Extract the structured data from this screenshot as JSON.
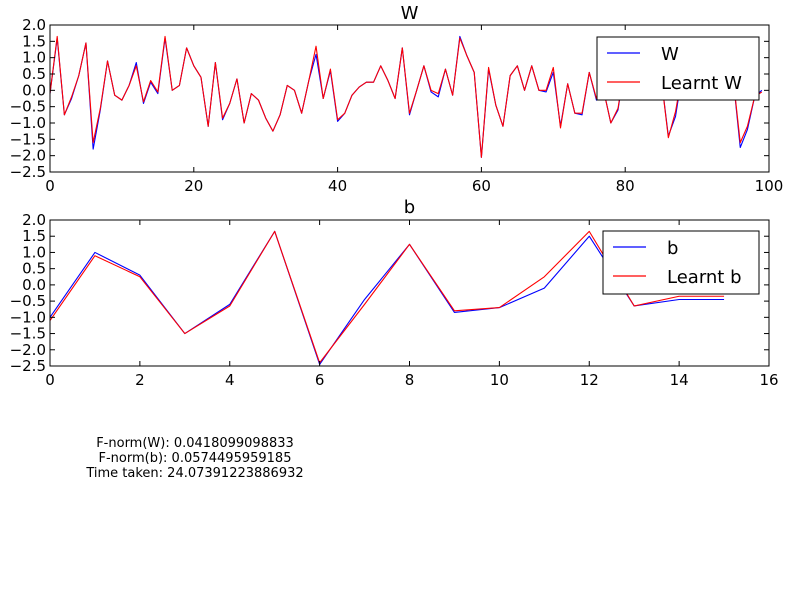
{
  "chart_data": [
    {
      "type": "line",
      "title": "W",
      "xlabel": "",
      "ylabel": "",
      "xlim": [
        0,
        100
      ],
      "ylim": [
        -2.5,
        2.0
      ],
      "xticks": [
        "0",
        "20",
        "40",
        "60",
        "80",
        "100"
      ],
      "yticks": [
        "2.0",
        "1.5",
        "1.0",
        "0.5",
        "0.0",
        "−0.5",
        "−1.0",
        "−1.5",
        "−2.0",
        "−2.5"
      ],
      "legend": "top-right",
      "series": [
        {
          "name": "W",
          "color": "#0000ff",
          "values": [
            -0.1,
            1.6,
            -0.75,
            -0.25,
            0.45,
            1.45,
            -1.8,
            -0.6,
            0.9,
            -0.15,
            -0.3,
            0.15,
            0.85,
            -0.4,
            0.25,
            -0.1,
            1.6,
            0.0,
            0.15,
            1.3,
            0.75,
            0.4,
            -1.1,
            0.85,
            -0.9,
            -0.4,
            0.35,
            -1.0,
            -0.1,
            -0.3,
            -0.85,
            -1.25,
            -0.75,
            0.15,
            0.0,
            -0.7,
            0.3,
            1.1,
            -0.25,
            0.6,
            -0.95,
            -0.7,
            -0.15,
            0.1,
            0.25,
            0.25,
            0.75,
            0.3,
            -0.25,
            1.3,
            -0.75,
            0.0,
            0.75,
            -0.05,
            -0.2,
            0.65,
            -0.15,
            1.65,
            1.05,
            0.55,
            -2.05,
            0.65,
            -0.45,
            -1.1,
            0.45,
            0.75,
            0.0,
            0.75,
            0.0,
            -0.05,
            0.55,
            -1.1,
            0.2,
            -0.7,
            -0.75,
            0.55,
            -0.3,
            0.0,
            -1.0,
            -0.6,
            0.85,
            0.3,
            0.4,
            0.4,
            0.3,
            0.4,
            -1.4,
            -0.8,
            0.6,
            0.4,
            0.3,
            0.4,
            0.3,
            0.4,
            0.3,
            0.4,
            -1.75,
            -1.2,
            -0.2,
            0.0
          ]
        },
        {
          "name": "Learnt W",
          "color": "#ff0000",
          "values": [
            -0.1,
            1.65,
            -0.75,
            -0.2,
            0.45,
            1.45,
            -1.6,
            -0.55,
            0.9,
            -0.15,
            -0.3,
            0.15,
            0.75,
            -0.35,
            0.3,
            -0.05,
            1.65,
            0.0,
            0.15,
            1.3,
            0.75,
            0.4,
            -1.1,
            0.85,
            -0.85,
            -0.4,
            0.35,
            -1.0,
            -0.1,
            -0.3,
            -0.85,
            -1.25,
            -0.75,
            0.15,
            0.0,
            -0.7,
            0.3,
            1.35,
            -0.25,
            0.65,
            -0.9,
            -0.7,
            -0.15,
            0.1,
            0.25,
            0.25,
            0.75,
            0.3,
            -0.25,
            1.3,
            -0.7,
            0.0,
            0.75,
            0.0,
            -0.1,
            0.65,
            -0.15,
            1.6,
            1.05,
            0.55,
            -2.05,
            0.7,
            -0.45,
            -1.1,
            0.45,
            0.75,
            0.0,
            0.75,
            0.0,
            0.0,
            0.7,
            -1.15,
            0.2,
            -0.7,
            -0.7,
            0.55,
            -0.25,
            0.0,
            -1.0,
            -0.55,
            0.85,
            0.3,
            0.4,
            0.4,
            0.3,
            0.4,
            -1.45,
            -0.65,
            0.6,
            0.4,
            0.3,
            0.4,
            0.3,
            0.4,
            0.3,
            0.4,
            -1.6,
            -1.1,
            -0.2,
            -0.05
          ]
        }
      ]
    },
    {
      "type": "line",
      "title": "b",
      "xlabel": "",
      "ylabel": "",
      "xlim": [
        0,
        16
      ],
      "ylim": [
        -2.5,
        2.0
      ],
      "xticks": [
        "0",
        "2",
        "4",
        "6",
        "8",
        "10",
        "12",
        "14",
        "16"
      ],
      "yticks": [
        "2.0",
        "1.5",
        "1.0",
        "0.5",
        "0.0",
        "−0.5",
        "−1.0",
        "−1.5",
        "−2.0",
        "−2.5"
      ],
      "legend": "top-right",
      "series": [
        {
          "name": "b",
          "color": "#0000ff",
          "values": [
            -1.0,
            1.0,
            0.3,
            -1.5,
            -0.6,
            1.65,
            -2.45,
            -0.45,
            1.25,
            -0.85,
            -0.7,
            -0.1,
            1.5,
            -0.65,
            -0.45,
            -0.45
          ]
        },
        {
          "name": "Learnt b",
          "color": "#ff0000",
          "values": [
            -1.1,
            0.9,
            0.25,
            -1.5,
            -0.65,
            1.65,
            -2.4,
            -0.6,
            1.25,
            -0.8,
            -0.7,
            0.25,
            1.65,
            -0.65,
            -0.35,
            -0.35
          ]
        }
      ]
    }
  ],
  "stats": {
    "fnorm_w": "F-norm(W): 0.0418099098833",
    "fnorm_b": "F-norm(b): 0.0574495959185",
    "time_taken": "Time taken: 24.07391223886932"
  }
}
